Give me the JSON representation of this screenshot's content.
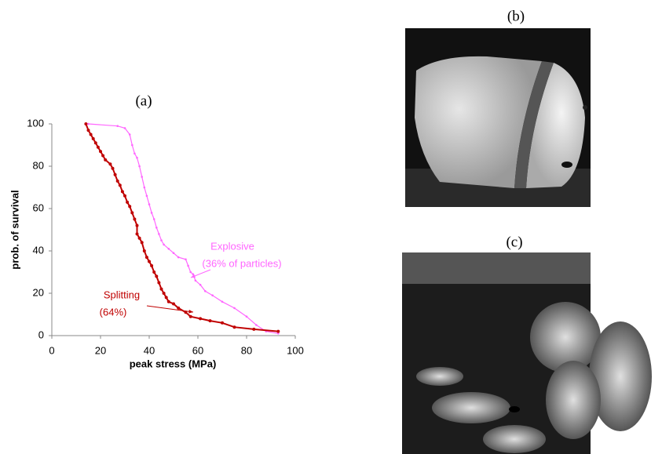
{
  "chart_data": {
    "type": "line",
    "title": "(a)",
    "x_label": "peak stress (MPa)",
    "y_label": "prob. of survival",
    "xlim": [
      0,
      100
    ],
    "xticks": [
      0,
      20,
      40,
      60,
      80,
      100
    ],
    "ylim": [
      0,
      100
    ],
    "yticks": [
      0,
      20,
      40,
      60,
      80,
      100
    ],
    "series": [
      {
        "name": "Explosive",
        "note": "(36% of particles)",
        "color": "#ff66ff",
        "x": [
          15,
          27,
          30,
          32,
          33,
          34,
          35,
          36,
          37,
          38,
          39,
          40,
          41,
          42,
          43,
          44,
          45,
          46,
          48,
          50,
          52,
          55,
          56,
          57,
          58,
          59,
          61,
          63,
          66,
          70,
          75,
          80,
          84,
          88,
          93
        ],
        "values": [
          100,
          99,
          98,
          95,
          90,
          86,
          84,
          80,
          75,
          70,
          66,
          62,
          58,
          55,
          51,
          48,
          45,
          43,
          41,
          39,
          37,
          36,
          33,
          30,
          29,
          26,
          24,
          21,
          19,
          16,
          13,
          9,
          5,
          2,
          1
        ]
      },
      {
        "name": "Splitting",
        "note": "(64%)",
        "color": "#c00000",
        "x": [
          14,
          15,
          16,
          17,
          18,
          19,
          20,
          21,
          22,
          24,
          25,
          26,
          27,
          28,
          29,
          30,
          31,
          32,
          33,
          34,
          35,
          35,
          36,
          37,
          38,
          39,
          40,
          41,
          42,
          43,
          44,
          45,
          46,
          47,
          48,
          50,
          52,
          55,
          57,
          61,
          65,
          70,
          75,
          83,
          93
        ],
        "values": [
          100,
          97,
          95,
          93,
          91,
          89,
          87,
          85,
          83,
          81,
          79,
          76,
          73,
          71,
          68,
          66,
          63,
          61,
          58,
          55,
          52,
          48,
          46,
          44,
          40,
          37,
          35,
          33,
          30,
          28,
          25,
          22,
          20,
          18,
          16,
          15,
          13,
          11,
          9,
          8,
          7,
          6,
          4,
          3,
          2
        ]
      }
    ]
  },
  "panels": [
    {
      "label": "(b)"
    },
    {
      "label": "(c)"
    }
  ]
}
